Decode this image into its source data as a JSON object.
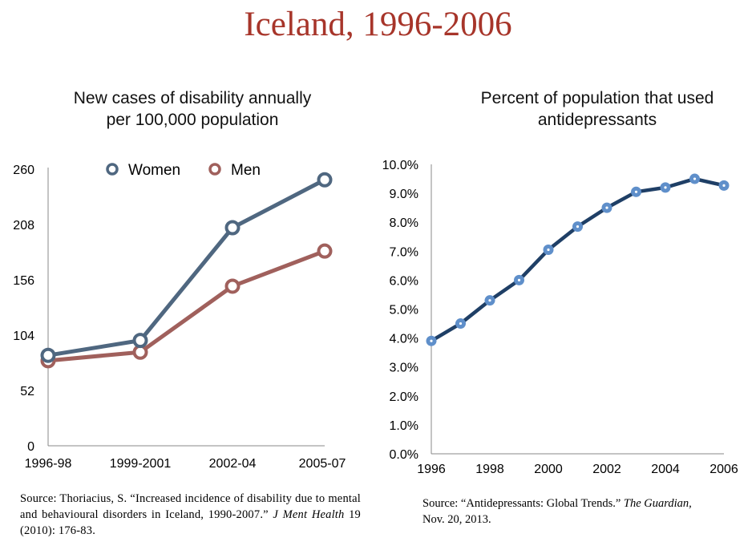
{
  "page_title": "Iceland, 1996-2006",
  "colors": {
    "title": "#a7352a",
    "women": "#4f6780",
    "men": "#a0605c",
    "antidepressants_line": "#1f3f66",
    "antidepressants_marker": "#5f8fca",
    "axis": "#888888"
  },
  "chart_data": [
    {
      "type": "line",
      "title_line1": "New cases of disability annually",
      "title_line2": "per 100,000 population",
      "categories": [
        "1996-98",
        "1999-2001",
        "2002-04",
        "2005-07"
      ],
      "series": [
        {
          "name": "Women",
          "values": [
            85,
            99,
            205,
            250
          ]
        },
        {
          "name": "Men",
          "values": [
            80,
            88,
            150,
            183
          ]
        }
      ],
      "yticks": [
        "0",
        "52",
        "104",
        "156",
        "208",
        "260"
      ],
      "ylim": [
        0,
        260
      ],
      "grid": false,
      "legend_position": "top-center",
      "marker": "hollow-circle"
    },
    {
      "type": "line",
      "title_line1": "Percent of population that used",
      "title_line2": "antidepressants",
      "x": [
        1996,
        1997,
        1998,
        1999,
        2000,
        2001,
        2002,
        2003,
        2004,
        2005,
        2006
      ],
      "values": [
        3.9,
        4.5,
        5.3,
        6.0,
        7.05,
        7.85,
        8.5,
        9.05,
        9.2,
        9.5,
        9.27
      ],
      "xticks": [
        "1996",
        "1998",
        "2000",
        "2002",
        "2004",
        "2006"
      ],
      "yticks": [
        "0.0%",
        "1.0%",
        "2.0%",
        "3.0%",
        "4.0%",
        "5.0%",
        "6.0%",
        "7.0%",
        "8.0%",
        "9.0%",
        "10.0%"
      ],
      "ylim": [
        0,
        10
      ],
      "xlim": [
        1996,
        2006
      ],
      "grid": false,
      "marker": "filled-circle"
    }
  ],
  "sources": {
    "left": {
      "part1": "Source: Thoriacius, S. “Increased incidence of disability due to mental and behavioural disorders in Iceland, 1990-2007.” ",
      "journal": "J Ment Health",
      "part2": " 19 (2010): 176-83."
    },
    "right": {
      "part1": "Source: “Antidepressants: Global Trends.” ",
      "journal": "The Guardian,",
      "part2": "Nov. 20, 2013."
    }
  }
}
